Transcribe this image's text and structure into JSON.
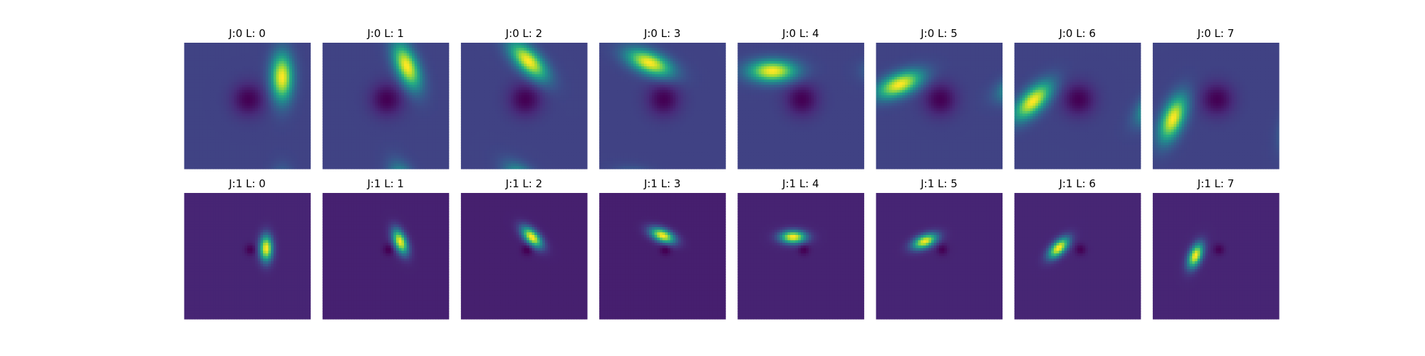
{
  "figure": {
    "colormap": "viridis",
    "colors": {
      "background": "#ffffff",
      "cmap_low": "#440154",
      "cmap_mid": "#21918c",
      "cmap_high": "#fde725"
    }
  },
  "chart_data": {
    "type": "heatmap",
    "layout": "grid 2 rows x 8 columns",
    "axes_visible": false,
    "grid": false,
    "legend": false,
    "rows": [
      {
        "J": 0,
        "panels": [
          {
            "title": "J:0 L: 0",
            "L": 0,
            "orientation_deg": 0
          },
          {
            "title": "J:0 L: 1",
            "L": 1,
            "orientation_deg": 22.5
          },
          {
            "title": "J:0 L: 2",
            "L": 2,
            "orientation_deg": 45
          },
          {
            "title": "J:0 L: 3",
            "L": 3,
            "orientation_deg": 67.5
          },
          {
            "title": "J:0 L: 4",
            "L": 4,
            "orientation_deg": 90
          },
          {
            "title": "J:0 L: 5",
            "L": 5,
            "orientation_deg": 112.5
          },
          {
            "title": "J:0 L: 6",
            "L": 6,
            "orientation_deg": 135
          },
          {
            "title": "J:0 L: 7",
            "L": 7,
            "orientation_deg": 157.5
          }
        ]
      },
      {
        "J": 1,
        "panels": [
          {
            "title": "J:1 L: 0",
            "L": 0,
            "orientation_deg": 0
          },
          {
            "title": "J:1 L: 1",
            "L": 1,
            "orientation_deg": 22.5
          },
          {
            "title": "J:1 L: 2",
            "L": 2,
            "orientation_deg": 45
          },
          {
            "title": "J:1 L: 3",
            "L": 3,
            "orientation_deg": 67.5
          },
          {
            "title": "J:1 L: 4",
            "L": 4,
            "orientation_deg": 90
          },
          {
            "title": "J:1 L: 5",
            "L": 5,
            "orientation_deg": 112.5
          },
          {
            "title": "J:1 L: 6",
            "L": 6,
            "orientation_deg": 135
          },
          {
            "title": "J:1 L: 7",
            "L": 7,
            "orientation_deg": 157.5
          }
        ]
      }
    ]
  }
}
